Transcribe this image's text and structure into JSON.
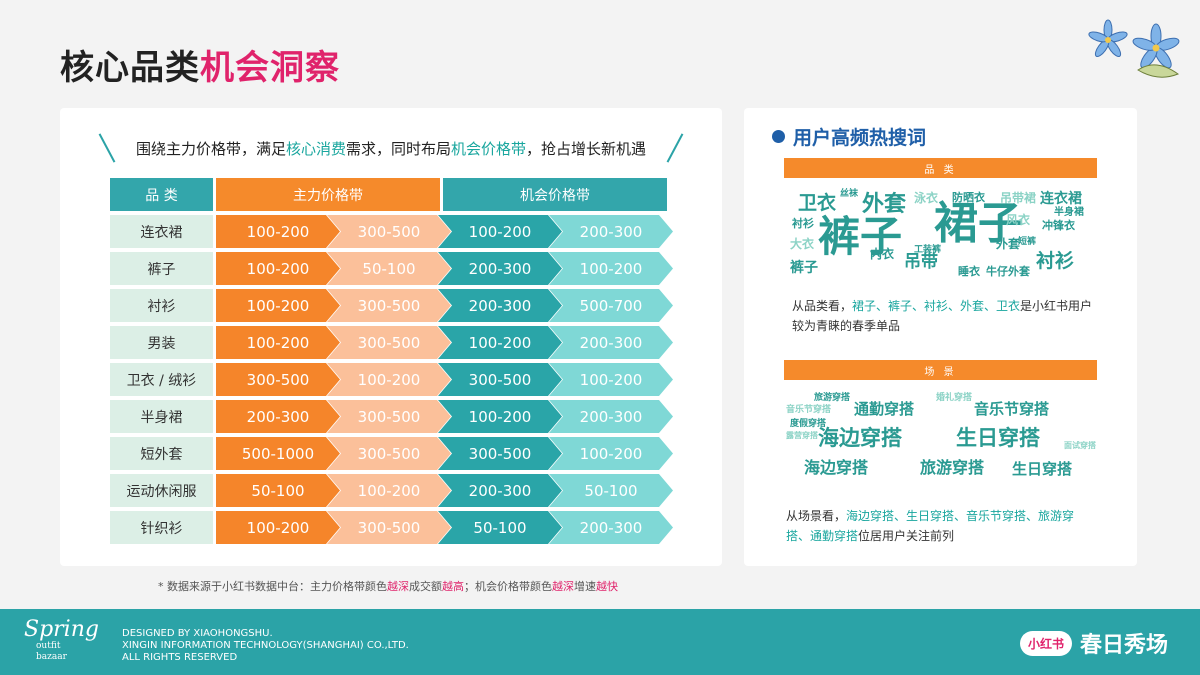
{
  "title": {
    "part1": "核心品类",
    "part2": "机会洞察"
  },
  "subtitle": {
    "t1": "围绕主力价格带，满足",
    "h1": "核心消费",
    "t2": "需求，同时布局",
    "h2": "机会价格带",
    "t3": "，抢占增长新机遇"
  },
  "table": {
    "headers": {
      "category": "品 类",
      "main": "主力价格带",
      "opportunity": "机会价格带"
    },
    "rows": [
      {
        "category": "连衣裙",
        "v": [
          "100-200",
          "300-500",
          "100-200",
          "200-300"
        ]
      },
      {
        "category": "裤子",
        "v": [
          "100-200",
          "50-100",
          "200-300",
          "100-200"
        ]
      },
      {
        "category": "衬衫",
        "v": [
          "100-200",
          "300-500",
          "200-300",
          "500-700"
        ]
      },
      {
        "category": "男装",
        "v": [
          "100-200",
          "300-500",
          "100-200",
          "200-300"
        ]
      },
      {
        "category": "卫衣 / 绒衫",
        "v": [
          "300-500",
          "100-200",
          "300-500",
          "100-200"
        ]
      },
      {
        "category": "半身裙",
        "v": [
          "200-300",
          "300-500",
          "100-200",
          "200-300"
        ]
      },
      {
        "category": "短外套",
        "v": [
          "500-1000",
          "300-500",
          "300-500",
          "100-200"
        ]
      },
      {
        "category": "运动休闲服",
        "v": [
          "50-100",
          "100-200",
          "200-300",
          "50-100"
        ]
      },
      {
        "category": "针织衫",
        "v": [
          "100-200",
          "300-500",
          "50-100",
          "200-300"
        ]
      }
    ]
  },
  "footnote": {
    "t1": "* 数据来源于小红书数据中台：主力价格带颜色",
    "r1": "越深",
    "t2": "成交额",
    "r2": "越高",
    "t3": "；机会价格带颜色",
    "r3": "越深",
    "t4": "增速",
    "r4": "越快"
  },
  "right": {
    "title": "用户高频热搜词",
    "bar1": "品 类",
    "bar2": "场 景",
    "cloud1": [
      "卫衣",
      "外套",
      "裙子",
      "裤子",
      "吊带",
      "连衣裙",
      "衬衫",
      "大衣",
      "内衣",
      "睡衣",
      "牛仔外套",
      "防晒衣",
      "风衣",
      "冲锋衣",
      "半身裙",
      "裤子",
      "丝袜",
      "泳衣",
      "吊带裙",
      "短裤",
      "工装裤",
      "外套",
      "衬衫"
    ],
    "desc1": {
      "t1": "从品类看，",
      "h": "裙子、裤子、衬衫、外套、卫衣",
      "t2": "是小红书用户较为青睐的春季单品"
    },
    "cloud2": [
      "海边穿搭",
      "生日穿搭",
      "通勤穿搭",
      "音乐节穿搭",
      "海边穿搭",
      "旅游穿搭",
      "生日穿搭",
      "旅游穿搭",
      "音乐节穿搭",
      "婚礼穿搭",
      "度假穿搭",
      "面试穿搭",
      "露营穿搭"
    ],
    "desc2": {
      "t1": "从场景看，",
      "h1": "海边穿搭、生日穿搭、音乐节穿搭、旅游穿搭、通勤穿搭",
      "t2": "位居用户关注前列"
    }
  },
  "footer": {
    "logo_main": "Spring",
    "logo_sub1": "outfit",
    "logo_sub2": "bazaar",
    "line1": "DESIGNED BY XIAOHONGSHU.",
    "line2": "XINGIN INFORMATION TECHNOLOGY(SHANGHAI) CO.,LTD.",
    "line3": "ALL RIGHTS RESERVED",
    "badge": "小红书",
    "brand": "春日秀场"
  },
  "colors": {
    "orange": "#f5852a",
    "teal": "#2aa5a8",
    "pink": "#e0236b",
    "blue": "#1f5fa8"
  }
}
